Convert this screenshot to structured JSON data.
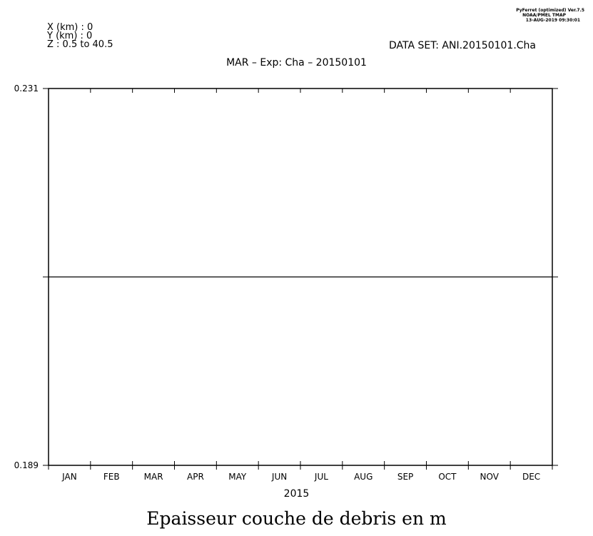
{
  "header": {
    "coords": [
      "X (km) : 0",
      "Y (km) : 0",
      "Z : 0.5 to 40.5"
    ],
    "software": [
      "PyFerret (optimized) Ver.7.5",
      "NOAA/PMEL TMAP",
      "13-AUG-2019 09:30:01"
    ],
    "dataset": "DATA SET: ANI.20150101.Cha"
  },
  "chart_data": {
    "type": "line",
    "title": "MAR – Exp: Cha – 20150101",
    "xlabel": "2015",
    "ylabel": "",
    "caption": "Epaisseur couche de debris en m",
    "categories": [
      "JAN",
      "FEB",
      "MAR",
      "APR",
      "MAY",
      "JUN",
      "JUL",
      "AUG",
      "SEP",
      "OCT",
      "NOV",
      "DEC"
    ],
    "ylim": [
      0.189,
      0.231
    ],
    "y_tick_labels": [
      "0.231",
      "0.189"
    ],
    "series": [
      {
        "values": [
          0.21,
          0.21,
          0.21,
          0.21,
          0.21,
          0.21,
          0.21,
          0.21,
          0.21,
          0.21,
          0.21,
          0.21
        ]
      }
    ],
    "grid": false,
    "legend": "none"
  }
}
